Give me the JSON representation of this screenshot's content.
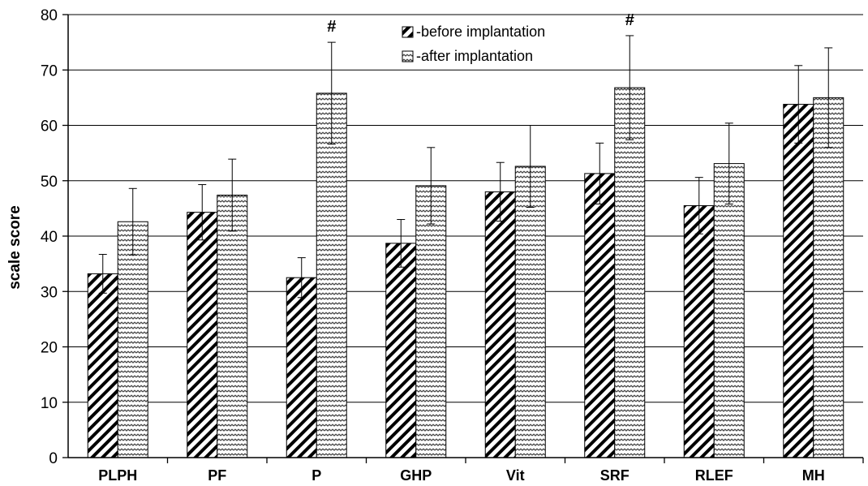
{
  "chart_data": {
    "type": "bar",
    "categories": [
      "PLPH",
      "PF",
      "P",
      "GHP",
      "Vit",
      "SRF",
      "RLEF",
      "MH"
    ],
    "series": [
      {
        "name": "-before implantation",
        "pattern": "diagonal-hatch",
        "values": [
          33.2,
          44.3,
          32.5,
          38.7,
          48.0,
          51.3,
          45.5,
          63.8
        ],
        "error": [
          3.5,
          5.0,
          3.6,
          4.3,
          5.3,
          5.5,
          5.1,
          7.0
        ]
      },
      {
        "name": "-after implantation",
        "pattern": "wavy",
        "values": [
          42.6,
          47.4,
          65.8,
          49.1,
          52.6,
          66.8,
          53.1,
          65.0
        ],
        "error": [
          6.0,
          6.5,
          9.2,
          6.9,
          7.4,
          9.4,
          7.3,
          9.0
        ]
      }
    ],
    "markers": [
      {
        "category": "P",
        "label": "#"
      },
      {
        "category": "SRF",
        "label": "#"
      }
    ],
    "ylabel": "scale score",
    "xlabel": "",
    "ylim": [
      0,
      80
    ],
    "yticks": [
      0,
      10,
      20,
      30,
      40,
      50,
      60,
      70,
      80
    ],
    "grid": true,
    "legend_position": "top-center"
  }
}
